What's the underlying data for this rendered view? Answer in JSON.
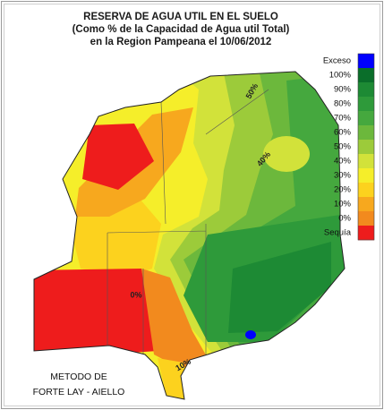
{
  "title": {
    "line1": "RESERVA DE AGUA UTIL EN EL SUELO",
    "line2": "(Como % de la Capacidad de Agua util Total)",
    "line3": "en la Region Pampeana el 10/06/2012"
  },
  "legend": {
    "items": [
      {
        "label": "Exceso",
        "color": "#0000ff"
      },
      {
        "label": "100%",
        "color": "#0a6e2a"
      },
      {
        "label": "90%",
        "color": "#1d8a34"
      },
      {
        "label": "80%",
        "color": "#2e9a3a"
      },
      {
        "label": "70%",
        "color": "#45a83e"
      },
      {
        "label": "60%",
        "color": "#6cb83c"
      },
      {
        "label": "50%",
        "color": "#9ccb3a"
      },
      {
        "label": "40%",
        "color": "#d2e23a"
      },
      {
        "label": "30%",
        "color": "#f5ee2a"
      },
      {
        "label": "20%",
        "color": "#fcd21e"
      },
      {
        "label": "10%",
        "color": "#f7a81e"
      },
      {
        "label": "0%",
        "color": "#f28a1e"
      },
      {
        "label": "Sequía",
        "color": "#ee1c1c"
      }
    ]
  },
  "map_labels": [
    "50%",
    "40%",
    "0%",
    "10%"
  ],
  "method": {
    "line1": "METODO DE",
    "line2": "FORTE LAY - AIELLO"
  }
}
